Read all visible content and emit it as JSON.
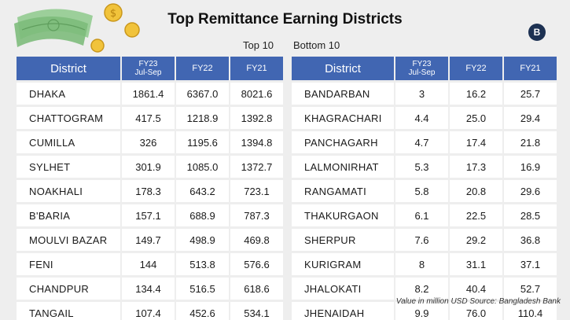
{
  "title": "Top Remittance Earning Districts",
  "logo_text": "B",
  "labels": {
    "top": "Top 10",
    "bottom": "Bottom 10"
  },
  "columns": {
    "district": "District",
    "fy23_line1": "FY23",
    "fy23_line2": "Jul-Sep",
    "fy22": "FY22",
    "fy21": "FY21"
  },
  "top10": [
    {
      "district": "DHAKA",
      "fy23": "1861.4",
      "fy22": "6367.0",
      "fy21": "8021.6"
    },
    {
      "district": "CHATTOGRAM",
      "fy23": "417.5",
      "fy22": "1218.9",
      "fy21": "1392.8"
    },
    {
      "district": "CUMILLA",
      "fy23": "326",
      "fy22": "1195.6",
      "fy21": "1394.8"
    },
    {
      "district": "SYLHET",
      "fy23": "301.9",
      "fy22": "1085.0",
      "fy21": "1372.7"
    },
    {
      "district": "NOAKHALI",
      "fy23": "178.3",
      "fy22": "643.2",
      "fy21": "723.1"
    },
    {
      "district": "B'BARIA",
      "fy23": "157.1",
      "fy22": "688.9",
      "fy21": "787.3"
    },
    {
      "district": "MOULVI BAZAR",
      "fy23": "149.7",
      "fy22": "498.9",
      "fy21": "469.8"
    },
    {
      "district": "FENI",
      "fy23": "144",
      "fy22": "513.8",
      "fy21": "576.6"
    },
    {
      "district": "CHANDPUR",
      "fy23": "134.4",
      "fy22": "516.5",
      "fy21": "618.6"
    },
    {
      "district": "TANGAIL",
      "fy23": "107.4",
      "fy22": "452.6",
      "fy21": "534.1"
    }
  ],
  "bottom10": [
    {
      "district": "BANDARBAN",
      "fy23": "3",
      "fy22": "16.2",
      "fy21": "25.7"
    },
    {
      "district": "KHAGRACHARI",
      "fy23": "4.4",
      "fy22": "25.0",
      "fy21": "29.4"
    },
    {
      "district": "PANCHAGARH",
      "fy23": "4.7",
      "fy22": "17.4",
      "fy21": "21.8"
    },
    {
      "district": "LALMONIRHAT",
      "fy23": "5.3",
      "fy22": "17.3",
      "fy21": "16.9"
    },
    {
      "district": "RANGAMATI",
      "fy23": "5.8",
      "fy22": "20.8",
      "fy21": "29.6"
    },
    {
      "district": "THAKURGAON",
      "fy23": "6.1",
      "fy22": "22.5",
      "fy21": "28.5"
    },
    {
      "district": "SHERPUR",
      "fy23": "7.6",
      "fy22": "29.2",
      "fy21": "36.8"
    },
    {
      "district": "KURIGRAM",
      "fy23": "8",
      "fy22": "31.1",
      "fy21": "37.1"
    },
    {
      "district": "JHALOKATI",
      "fy23": "8.2",
      "fy22": "40.4",
      "fy21": "52.7"
    },
    {
      "district": "JHENAIDAH",
      "fy23": "9.9",
      "fy22": "76.0",
      "fy21": "110.4"
    }
  ],
  "footer": "Value in million USD  Source: Bangladesh Bank",
  "colors": {
    "header": "#4166b2",
    "background": "#eeeeee",
    "logo": "#1d3152"
  }
}
